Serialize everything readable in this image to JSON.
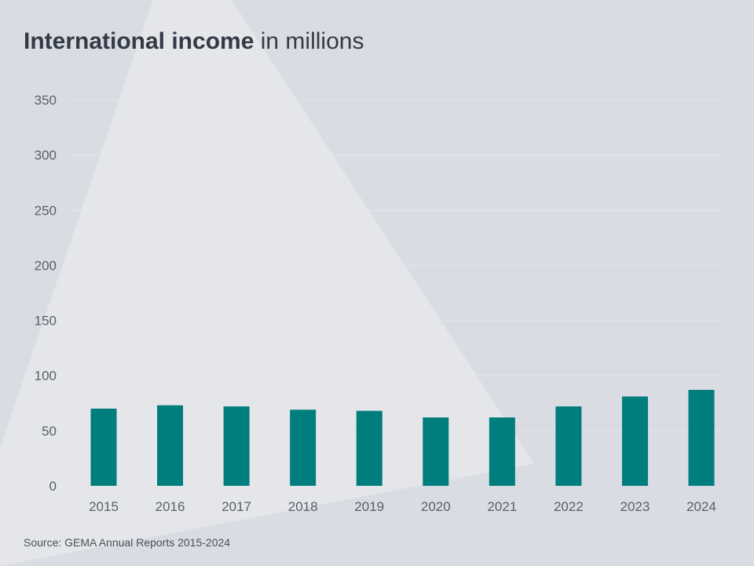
{
  "title": {
    "bold": "International income",
    "rest": "in millions"
  },
  "source": "Source: GEMA Annual Reports 2015-2024",
  "colors": {
    "bar": "#007d7d",
    "background": "#d9dce3",
    "highlight": "#e6e7eb"
  },
  "chart_data": {
    "type": "bar",
    "categories": [
      "2015",
      "2016",
      "2017",
      "2018",
      "2019",
      "2020",
      "2021",
      "2022",
      "2023",
      "2024"
    ],
    "values": [
      70,
      73,
      72,
      69,
      68,
      62,
      62,
      72,
      81,
      87
    ],
    "ylim": [
      0,
      350
    ],
    "yticks": [
      0,
      50,
      100,
      150,
      200,
      250,
      300,
      350
    ],
    "grid": true
  }
}
